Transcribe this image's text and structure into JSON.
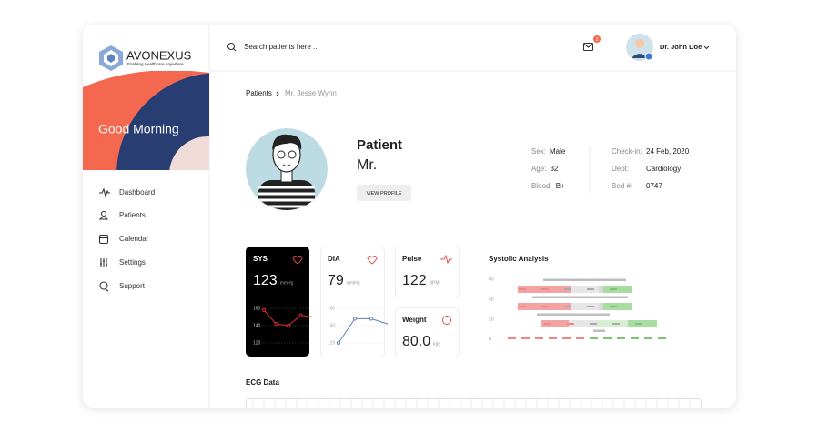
{
  "brand": {
    "name": "AVONEXUS",
    "tagline": "Enabling Healthcare Anywhere"
  },
  "greeting": "Good Morning",
  "nav": [
    "Dashboard",
    "Patients",
    "Calendar",
    "Settings",
    "Support"
  ],
  "header": {
    "search_placeholder": "Search patients here ...",
    "notifications": 2,
    "user": "Dr. John Doe"
  },
  "breadcrumb": [
    "Patients",
    "Mr. Jesse Wynn"
  ],
  "patient": {
    "heading": "Patient",
    "name": "Mr.",
    "button": "VIEW PROFILE",
    "details": [
      {
        "label": "Sex:",
        "value": "Male"
      },
      {
        "label": "Age:",
        "value": 32
      },
      {
        "label": "Blood:",
        "value": "B+"
      }
    ],
    "admission": [
      {
        "label": "Check-in:",
        "value": "24 Feb, 2020"
      },
      {
        "label": "Dept:",
        "value": "Cardiology"
      },
      {
        "label": "Bed #:",
        "value": "0747"
      }
    ]
  },
  "vitals": [
    {
      "label": "SYS",
      "value": 123,
      "unit": "mmHg",
      "chart": {
        "yticks": [
          160,
          140,
          120
        ],
        "values": [
          158,
          142,
          140,
          152,
          150
        ]
      }
    },
    {
      "label": "DIA",
      "value": 79,
      "unit": "mmHg",
      "chart": {
        "yticks": [
          160,
          140,
          120
        ],
        "values": [
          120,
          148,
          148,
          142
        ]
      }
    },
    {
      "label": "Pulse",
      "value": 122,
      "unit": "BPM"
    },
    {
      "label": "Weight",
      "value": "80.0",
      "unit": "kgs"
    }
  ],
  "analysis": {
    "title": "Systolic Analysis",
    "yticks": [
      60,
      40,
      20,
      0
    ]
  },
  "ecg": {
    "title": "ECG Data"
  }
}
